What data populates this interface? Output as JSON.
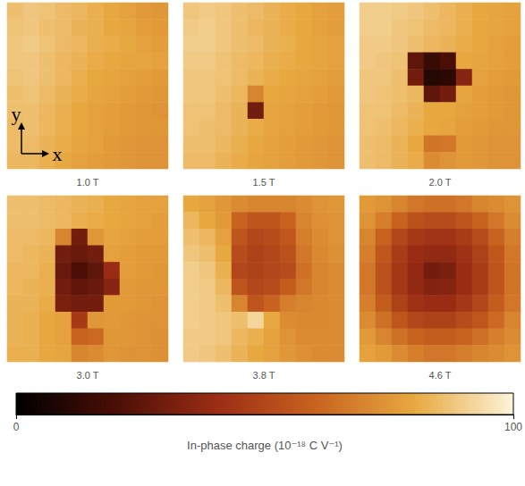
{
  "chart_data": {
    "type": "heatmap",
    "axes_labels": {
      "x": "x",
      "y": "y"
    },
    "panels": [
      {
        "label": "1.0 T",
        "cells": [
          [
            86,
            88,
            87,
            85,
            84,
            82,
            80,
            78,
            76,
            75
          ],
          [
            87,
            88,
            86,
            85,
            83,
            82,
            80,
            79,
            77,
            76
          ],
          [
            88,
            89,
            87,
            85,
            84,
            82,
            81,
            80,
            78,
            77
          ],
          [
            88,
            88,
            86,
            84,
            83,
            81,
            80,
            79,
            79,
            78
          ],
          [
            87,
            88,
            86,
            84,
            82,
            80,
            79,
            78,
            77,
            76
          ],
          [
            86,
            87,
            85,
            83,
            81,
            79,
            78,
            77,
            76,
            75
          ],
          [
            86,
            86,
            84,
            82,
            80,
            78,
            77,
            76,
            75,
            74
          ],
          [
            85,
            86,
            84,
            82,
            80,
            78,
            77,
            76,
            75,
            75
          ],
          [
            85,
            85,
            83,
            81,
            79,
            78,
            76,
            75,
            74,
            74
          ],
          [
            84,
            84,
            82,
            80,
            78,
            77,
            76,
            75,
            74,
            74
          ]
        ]
      },
      {
        "label": "1.5 T",
        "cells": [
          [
            88,
            89,
            88,
            86,
            85,
            83,
            81,
            80,
            78,
            77
          ],
          [
            89,
            90,
            88,
            86,
            84,
            83,
            81,
            80,
            78,
            77
          ],
          [
            90,
            90,
            88,
            86,
            85,
            83,
            82,
            80,
            79,
            78
          ],
          [
            89,
            89,
            87,
            85,
            84,
            82,
            81,
            80,
            79,
            78
          ],
          [
            88,
            88,
            87,
            85,
            83,
            81,
            80,
            79,
            78,
            77
          ],
          [
            88,
            88,
            86,
            84,
            70,
            80,
            79,
            78,
            77,
            76
          ],
          [
            87,
            87,
            85,
            83,
            30,
            79,
            78,
            77,
            76,
            75
          ],
          [
            87,
            86,
            85,
            83,
            81,
            79,
            78,
            77,
            76,
            75
          ],
          [
            86,
            86,
            84,
            82,
            80,
            78,
            77,
            76,
            75,
            74
          ],
          [
            85,
            85,
            83,
            81,
            79,
            78,
            77,
            76,
            75,
            74
          ]
        ]
      },
      {
        "label": "2.0 T",
        "cells": [
          [
            90,
            90,
            89,
            88,
            86,
            84,
            82,
            80,
            79,
            78
          ],
          [
            90,
            90,
            88,
            87,
            85,
            84,
            82,
            80,
            79,
            78
          ],
          [
            89,
            89,
            88,
            86,
            84,
            83,
            81,
            80,
            78,
            77
          ],
          [
            89,
            88,
            87,
            25,
            15,
            20,
            80,
            79,
            78,
            77
          ],
          [
            88,
            88,
            86,
            30,
            10,
            12,
            35,
            78,
            77,
            76
          ],
          [
            88,
            87,
            86,
            84,
            25,
            30,
            79,
            77,
            76,
            75
          ],
          [
            87,
            87,
            85,
            83,
            80,
            80,
            78,
            77,
            76,
            75
          ],
          [
            87,
            86,
            84,
            82,
            80,
            79,
            77,
            76,
            75,
            75
          ],
          [
            86,
            85,
            83,
            80,
            65,
            66,
            76,
            75,
            74,
            74
          ],
          [
            86,
            85,
            83,
            81,
            72,
            74,
            76,
            75,
            74,
            74
          ]
        ]
      },
      {
        "label": "3.0 T",
        "cells": [
          [
            86,
            86,
            85,
            84,
            83,
            82,
            80,
            79,
            78,
            78
          ],
          [
            86,
            86,
            85,
            84,
            82,
            81,
            80,
            79,
            78,
            77
          ],
          [
            85,
            85,
            84,
            70,
            30,
            75,
            79,
            78,
            77,
            77
          ],
          [
            85,
            84,
            83,
            30,
            28,
            30,
            78,
            77,
            76,
            76
          ],
          [
            84,
            84,
            82,
            28,
            20,
            25,
            40,
            77,
            76,
            75
          ],
          [
            84,
            83,
            82,
            30,
            25,
            28,
            35,
            76,
            75,
            75
          ],
          [
            83,
            83,
            81,
            32,
            30,
            30,
            76,
            76,
            75,
            74
          ],
          [
            83,
            82,
            80,
            78,
            45,
            75,
            76,
            75,
            74,
            74
          ],
          [
            83,
            82,
            80,
            78,
            60,
            62,
            75,
            75,
            74,
            73
          ],
          [
            82,
            82,
            80,
            79,
            70,
            72,
            75,
            74,
            74,
            73
          ]
        ]
      },
      {
        "label": "3.8 T",
        "cells": [
          [
            80,
            78,
            75,
            72,
            70,
            70,
            70,
            72,
            74,
            75
          ],
          [
            84,
            80,
            76,
            60,
            55,
            55,
            60,
            70,
            73,
            74
          ],
          [
            86,
            84,
            78,
            55,
            50,
            52,
            56,
            68,
            72,
            74
          ],
          [
            88,
            86,
            80,
            52,
            48,
            50,
            54,
            66,
            71,
            73
          ],
          [
            90,
            88,
            82,
            50,
            48,
            50,
            52,
            64,
            70,
            72
          ],
          [
            90,
            89,
            84,
            55,
            50,
            52,
            58,
            66,
            70,
            72
          ],
          [
            90,
            89,
            86,
            70,
            55,
            60,
            68,
            70,
            71,
            72
          ],
          [
            90,
            89,
            88,
            86,
            92,
            80,
            72,
            71,
            71,
            72
          ],
          [
            89,
            89,
            88,
            84,
            82,
            78,
            74,
            72,
            72,
            72
          ],
          [
            89,
            88,
            86,
            83,
            80,
            78,
            75,
            73,
            72,
            72
          ]
        ]
      },
      {
        "label": "4.6 T",
        "cells": [
          [
            76,
            74,
            70,
            66,
            64,
            64,
            66,
            70,
            72,
            74
          ],
          [
            74,
            68,
            60,
            54,
            52,
            52,
            55,
            60,
            66,
            72
          ],
          [
            70,
            60,
            50,
            45,
            43,
            43,
            46,
            52,
            60,
            68
          ],
          [
            68,
            56,
            46,
            40,
            38,
            38,
            42,
            48,
            56,
            66
          ],
          [
            66,
            54,
            44,
            38,
            30,
            32,
            40,
            46,
            55,
            65
          ],
          [
            66,
            54,
            44,
            38,
            34,
            35,
            40,
            46,
            55,
            65
          ],
          [
            68,
            58,
            48,
            42,
            40,
            40,
            44,
            50,
            58,
            66
          ],
          [
            72,
            64,
            56,
            50,
            48,
            48,
            52,
            56,
            62,
            70
          ],
          [
            76,
            70,
            64,
            60,
            58,
            58,
            60,
            64,
            68,
            72
          ],
          [
            78,
            76,
            72,
            68,
            66,
            66,
            68,
            70,
            72,
            74
          ]
        ]
      }
    ],
    "colorbar": {
      "title": "In-phase charge (10⁻¹⁸ C V⁻¹)",
      "range": [
        0,
        100
      ],
      "ticks": [
        0,
        100
      ]
    }
  }
}
